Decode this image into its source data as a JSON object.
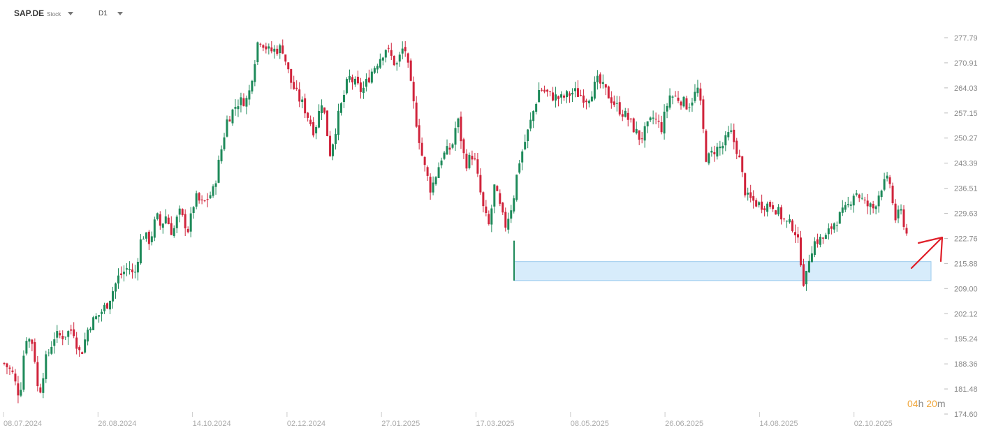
{
  "toolbar": {
    "symbol": "SAP.DE",
    "symbol_type": "Stock",
    "timeframe": "D1"
  },
  "countdown": {
    "hours": "04",
    "h_unit": "h",
    "minutes": "20",
    "m_unit": "m"
  },
  "colors": {
    "up": "#1e8a5a",
    "down": "#d0233b",
    "zone_fill": "#d7ecfb",
    "zone_stroke": "#9bcbee",
    "annotation": "#e0202a",
    "countdown": "#f0a63a"
  },
  "chart_data": {
    "type": "candlestick",
    "y_axis_side": "right",
    "ylim": [
      174.6,
      284.0
    ],
    "y_ticks": [
      277.79,
      270.91,
      264.03,
      257.15,
      250.27,
      243.39,
      236.51,
      229.63,
      222.76,
      215.88,
      209.0,
      202.12,
      195.24,
      188.36,
      181.48,
      174.6
    ],
    "x_tick_labels": [
      "08.07.2024",
      "26.08.2024",
      "14.10.2024",
      "02.12.2024",
      "27.01.2025",
      "17.03.2025",
      "08.05.2025",
      "26.06.2025",
      "14.08.2025",
      "02.10.2025"
    ],
    "bars": 325,
    "anchors": [
      [
        0,
        188.5
      ],
      [
        6,
        186
      ],
      [
        10,
        181
      ],
      [
        12,
        180
      ],
      [
        16,
        196
      ],
      [
        22,
        194
      ],
      [
        26,
        179
      ],
      [
        31,
        189
      ],
      [
        38,
        196
      ],
      [
        44,
        196
      ],
      [
        52,
        198
      ],
      [
        56,
        192
      ],
      [
        58,
        191
      ],
      [
        64,
        199
      ],
      [
        72,
        202
      ],
      [
        78,
        205
      ],
      [
        86,
        212
      ],
      [
        94,
        215
      ],
      [
        98,
        212
      ],
      [
        104,
        224
      ],
      [
        110,
        222
      ],
      [
        115,
        229
      ],
      [
        118,
        226
      ],
      [
        122,
        229
      ],
      [
        127,
        224
      ],
      [
        132,
        230
      ],
      [
        139,
        225
      ],
      [
        144,
        234
      ],
      [
        150,
        232
      ],
      [
        158,
        236
      ],
      [
        168,
        255
      ],
      [
        176,
        260
      ],
      [
        184,
        261
      ],
      [
        192,
        278
      ],
      [
        200,
        274
      ],
      [
        210,
        275
      ],
      [
        216,
        266
      ],
      [
        221,
        262
      ],
      [
        226,
        259
      ],
      [
        234,
        252
      ],
      [
        240,
        261
      ],
      [
        246,
        246
      ],
      [
        252,
        256
      ],
      [
        260,
        267
      ],
      [
        270,
        263
      ],
      [
        278,
        269
      ],
      [
        288,
        275
      ],
      [
        296,
        270
      ],
      [
        302,
        276
      ],
      [
        310,
        257
      ],
      [
        316,
        244
      ],
      [
        322,
        236
      ],
      [
        330,
        245
      ],
      [
        338,
        248
      ],
      [
        342,
        256
      ],
      [
        348,
        243
      ],
      [
        354,
        246
      ],
      [
        362,
        230
      ],
      [
        366,
        226
      ],
      [
        370,
        237
      ],
      [
        378,
        226
      ],
      [
        384,
        233
      ],
      [
        388,
        243
      ],
      [
        396,
        253
      ],
      [
        404,
        264
      ],
      [
        412,
        262
      ],
      [
        420,
        261
      ],
      [
        430,
        263
      ],
      [
        440,
        261
      ],
      [
        448,
        266
      ],
      [
        456,
        262
      ],
      [
        462,
        259
      ],
      [
        470,
        256
      ],
      [
        480,
        250
      ],
      [
        490,
        256
      ],
      [
        496,
        253
      ],
      [
        502,
        262
      ],
      [
        510,
        261
      ],
      [
        516,
        259
      ],
      [
        524,
        264
      ],
      [
        530,
        244
      ],
      [
        536,
        247
      ],
      [
        542,
        248
      ],
      [
        548,
        252
      ],
      [
        554,
        246
      ],
      [
        560,
        234
      ],
      [
        570,
        232
      ],
      [
        580,
        232
      ],
      [
        590,
        227
      ],
      [
        596,
        226
      ],
      [
        600,
        220
      ],
      [
        604,
        209
      ],
      [
        608,
        219
      ],
      [
        612,
        222
      ],
      [
        620,
        223
      ],
      [
        626,
        227
      ],
      [
        636,
        231
      ],
      [
        642,
        236
      ],
      [
        650,
        232
      ],
      [
        656,
        231
      ],
      [
        662,
        237
      ],
      [
        668,
        239
      ],
      [
        672,
        228
      ],
      [
        677,
        230
      ],
      [
        681,
        224
      ]
    ],
    "zone": {
      "price_low": 211.2,
      "price_high": 216.4,
      "date_start": "17.03.2025"
    }
  }
}
